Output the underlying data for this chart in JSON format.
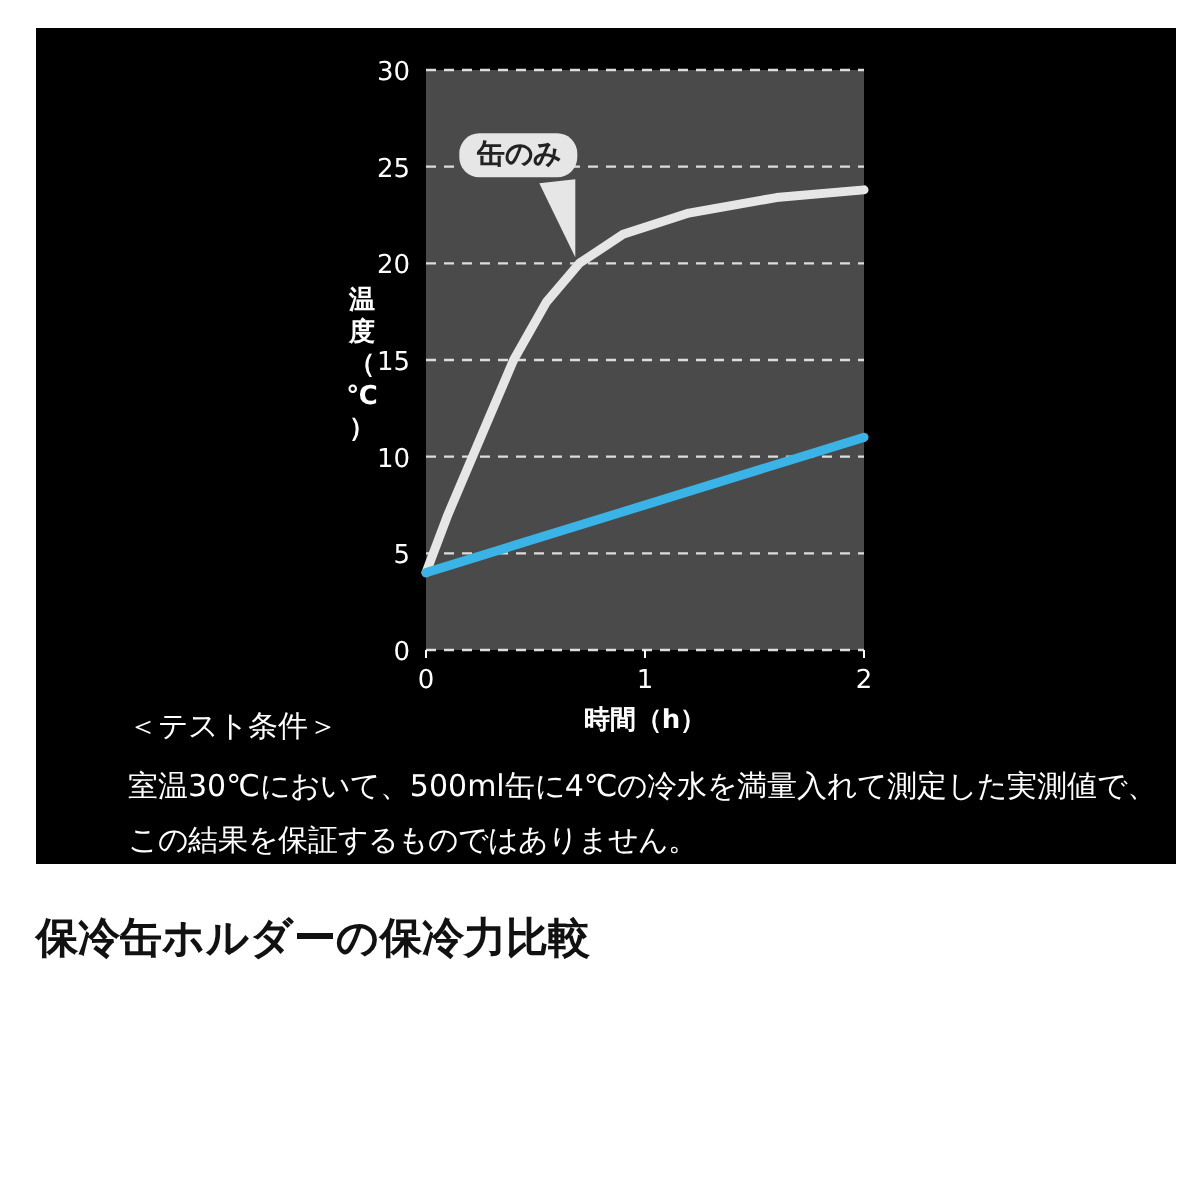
{
  "chart_data": {
    "type": "line",
    "title": "保冷缶ホルダーの保冷力比較",
    "xlabel": "時間（h）",
    "ylabel": "温度（℃）",
    "xlim": [
      0,
      2
    ],
    "ylim": [
      0,
      30
    ],
    "xticks": [
      0,
      1,
      2
    ],
    "yticks": [
      0,
      5,
      10,
      15,
      20,
      25,
      30
    ],
    "grid": "y",
    "series": [
      {
        "name": "缶のみ",
        "color": "#e6e6e6",
        "x": [
          0,
          0.1,
          0.25,
          0.4,
          0.55,
          0.7,
          0.9,
          1.2,
          1.6,
          2
        ],
        "values": [
          4,
          7,
          11,
          15,
          18,
          20,
          21.5,
          22.6,
          23.4,
          23.8
        ]
      },
      {
        "color": "#3ab4e6",
        "x": [
          0,
          2
        ],
        "values": [
          4,
          11
        ]
      }
    ],
    "annotations": [
      "＜テスト条件＞",
      "室温30℃において、500ml缶に4℃の冷水を満量入れて測定した実測値で、この結果を保証するものではありません。"
    ]
  }
}
